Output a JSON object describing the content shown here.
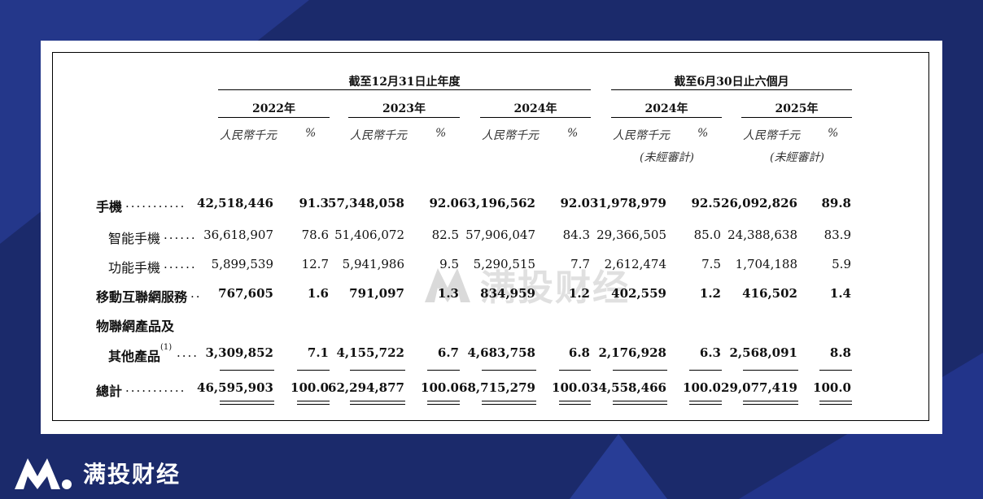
{
  "brand": {
    "name": "满投财经",
    "logo_icon": "mt-logo-icon"
  },
  "watermark_text": "满投财经",
  "headers": {
    "group_year": "截至12月31日止年度",
    "group_half": "截至6月30日止六個月",
    "periods": [
      "2022年",
      "2023年",
      "2024年",
      "2024年",
      "2025年"
    ],
    "unit_amount": "人民幣千元",
    "unit_pct": "%",
    "unaudited": "(未經審計)"
  },
  "rows": [
    {
      "label": "手機",
      "dots": "...........",
      "bold": true,
      "indent": false,
      "values": [
        "42,518,446",
        "91.3",
        "57,348,058",
        "92.0",
        "63,196,562",
        "92.0",
        "31,978,979",
        "92.5",
        "26,092,826",
        "89.8"
      ]
    },
    {
      "label": "智能手機",
      "dots": "......",
      "bold": false,
      "indent": true,
      "values": [
        "36,618,907",
        "78.6",
        "51,406,072",
        "82.5",
        "57,906,047",
        "84.3",
        "29,366,505",
        "85.0",
        "24,388,638",
        "83.9"
      ]
    },
    {
      "label": "功能手機",
      "dots": "......",
      "bold": false,
      "indent": true,
      "values": [
        "5,899,539",
        "12.7",
        "5,941,986",
        "9.5",
        "5,290,515",
        "7.7",
        "2,612,474",
        "7.5",
        "1,704,188",
        "5.9"
      ]
    },
    {
      "label": "移動互聯網服務",
      "dots": "..",
      "bold": true,
      "indent": false,
      "values": [
        "767,605",
        "1.6",
        "791,097",
        "1.3",
        "834,959",
        "1.2",
        "402,559",
        "1.2",
        "416,502",
        "1.4"
      ]
    },
    {
      "label": "物聯網產品及",
      "dots": "",
      "bold": true,
      "indent": false,
      "values": [
        "",
        "",
        "",
        "",
        "",
        "",
        "",
        "",
        "",
        ""
      ]
    },
    {
      "label": "其他產品",
      "sup": "(1)",
      "dots": "....",
      "bold": true,
      "indent": true,
      "values": [
        "3,309,852",
        "7.1",
        "4,155,722",
        "6.7",
        "4,683,758",
        "6.8",
        "2,176,928",
        "6.3",
        "2,568,091",
        "8.8"
      ]
    },
    {
      "label": "總計",
      "dots": "...........",
      "bold": true,
      "indent": false,
      "values": [
        "46,595,903",
        "100.0",
        "62,294,877",
        "100.0",
        "68,715,279",
        "100.0",
        "34,558,466",
        "100.0",
        "29,077,419",
        "100.0"
      ]
    }
  ]
}
